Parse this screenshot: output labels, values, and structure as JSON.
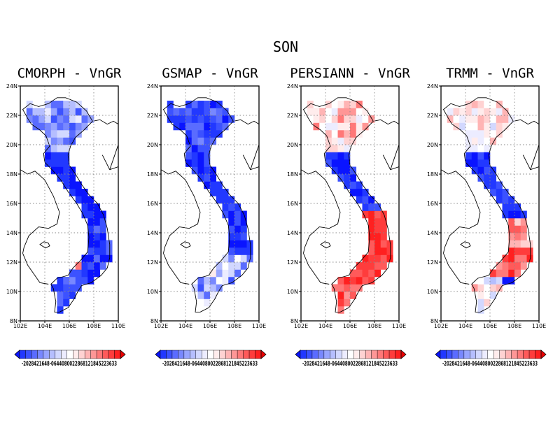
{
  "figure": {
    "title": "SON",
    "panels": [
      {
        "title": "CMORPH - VnGR",
        "scheme": "cmorph"
      },
      {
        "title": "GSMAP - VnGR",
        "scheme": "gsmap"
      },
      {
        "title": "PERSIANN - VnGR",
        "scheme": "persiann"
      },
      {
        "title": "TRMM - VnGR",
        "scheme": "trmm"
      }
    ],
    "lon_labels": [
      "102E",
      "104E",
      "106E",
      "108E",
      "110E"
    ],
    "lat_labels": [
      "8N",
      "10N",
      "12N",
      "14N",
      "16N",
      "18N",
      "20N",
      "22N",
      "24N"
    ],
    "colorbar_label": "-2028421648-0644080022868121845223633"
  },
  "map_data": {
    "type": "gridded-map",
    "lon_range": [
      102,
      110
    ],
    "lat_range": [
      8,
      24
    ],
    "gridlines": "dotted",
    "colorbar": {
      "colors": [
        "#0a14ff",
        "#2238ff",
        "#3c52ff",
        "#5a6cff",
        "#7888ff",
        "#97a4ff",
        "#b5beff",
        "#d2d8ff",
        "#ececff",
        "#ffffff",
        "#ffecec",
        "#ffd2d2",
        "#ffb4b4",
        "#ff9696",
        "#ff7878",
        "#ff5a5a",
        "#ff3c3c",
        "#ff2020",
        "#e80000"
      ]
    }
  }
}
